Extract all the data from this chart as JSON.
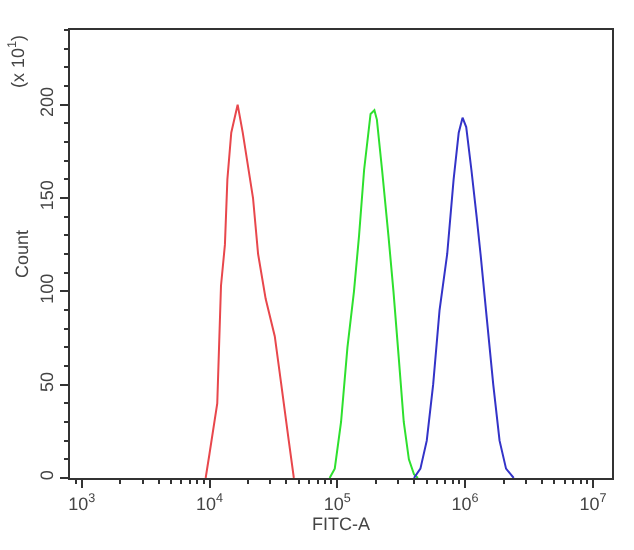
{
  "chart_data": {
    "type": "line",
    "xlabel": "FITC-A",
    "ylabel": "Count",
    "annotations": [
      "(x 10$^{1}$)"
    ],
    "log": "x",
    "marker": "none",
    "line_style": "solid",
    "xlim": [
      810,
      14100000
    ],
    "ylim": [
      0,
      240
    ],
    "xticks": [
      {
        "value": 1000,
        "label": "10$^{3}$"
      },
      {
        "value": 10000,
        "label": "10$^{4}$"
      },
      {
        "value": 100000,
        "label": "10$^{5}$"
      },
      {
        "value": 1000000,
        "label": "10$^{6}$"
      },
      {
        "value": 10000000,
        "label": "10$^{7}$"
      }
    ],
    "yticks": [
      0,
      50,
      100,
      150,
      200
    ],
    "series": [
      {
        "color": "#e8474c",
        "x": [
          9330,
          10000,
          11500,
          12300,
          13200,
          13800,
          14800,
          16600,
          18200,
          21900,
          24000,
          27500,
          32400,
          36300,
          41700,
          45700
        ],
        "values": [
          0,
          13,
          40,
          103,
          125,
          160,
          185,
          200,
          185,
          150,
          120,
          96,
          76,
          51,
          20,
          0
        ]
      },
      {
        "color": "#2ee02e",
        "x": [
          87100,
          95500,
          107000,
          120000,
          135000,
          148000,
          162000,
          182000,
          195000,
          204000,
          224000,
          251000,
          275000,
          302000,
          331000,
          363000,
          398000,
          427000
        ],
        "values": [
          0,
          5,
          30,
          70,
          100,
          130,
          165,
          195,
          197,
          192,
          165,
          130,
          100,
          65,
          30,
          10,
          2,
          0
        ]
      },
      {
        "color": "#3333c8",
        "x": [
          398000,
          447000,
          501000,
          562000,
          631000,
          724000,
          813000,
          891000,
          955000,
          1020000,
          1120000,
          1230000,
          1320000,
          1480000,
          1660000,
          1860000,
          2090000,
          2400000
        ],
        "values": [
          0,
          5,
          20,
          50,
          90,
          120,
          160,
          185,
          193,
          188,
          165,
          140,
          120,
          85,
          50,
          20,
          5,
          0
        ]
      }
    ]
  }
}
